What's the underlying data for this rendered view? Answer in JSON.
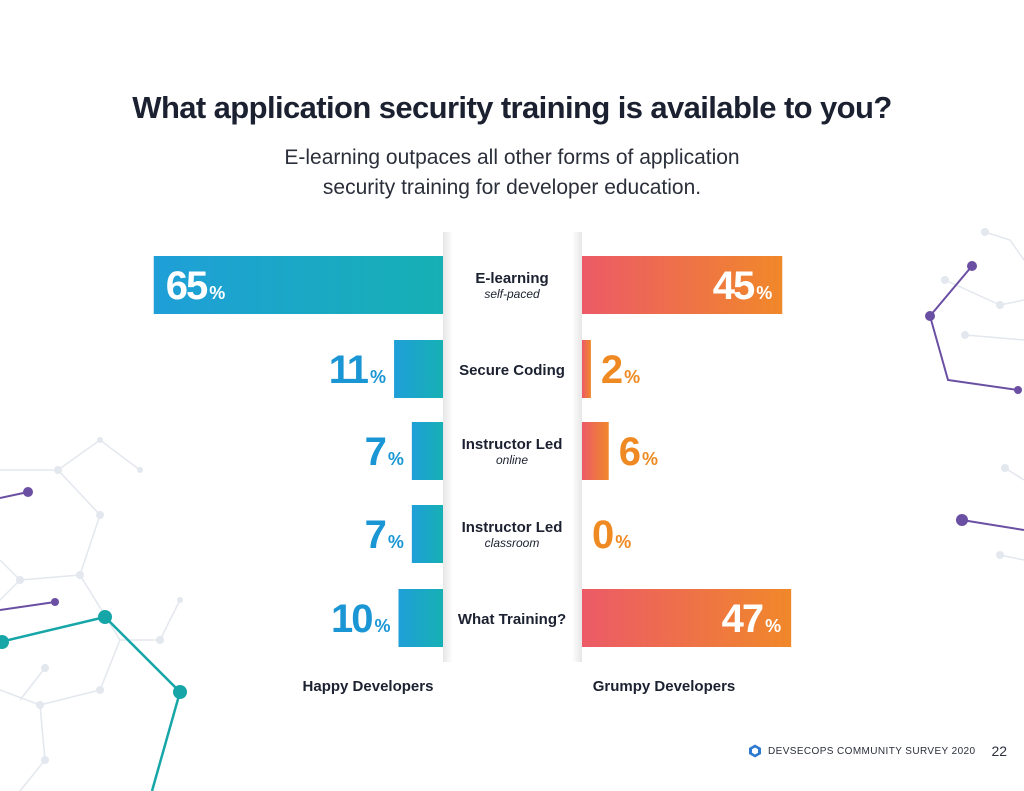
{
  "page": {
    "title": "What application security training is available to you?",
    "subtitle": "E-learning outpaces all other forms of application security training for developer education."
  },
  "chart_data": {
    "type": "bar",
    "orientation": "horizontal-diverging",
    "categories": [
      {
        "label": "E-learning",
        "sublabel": "self-paced"
      },
      {
        "label": "Secure Coding",
        "sublabel": ""
      },
      {
        "label": "Instructor Led",
        "sublabel": "online"
      },
      {
        "label": "Instructor Led",
        "sublabel": "classroom"
      },
      {
        "label": "What Training?",
        "sublabel": ""
      }
    ],
    "series": [
      {
        "name": "Happy Developers",
        "values": [
          65,
          11,
          7,
          7,
          10
        ],
        "color_start": "#1f9fd8",
        "color_end": "#16b0b4",
        "label_color": "#1a96d4"
      },
      {
        "name": "Grumpy Developers",
        "values": [
          45,
          2,
          6,
          0,
          47
        ],
        "color_start": "#ec5a67",
        "color_end": "#f0882a",
        "label_color": "#ef8a22"
      }
    ],
    "unit": "%",
    "xlim": [
      0,
      100
    ],
    "legend_position": "bottom"
  },
  "footer": {
    "text": "DEVSECOPS COMMUNITY SURVEY 2020",
    "page_number": "22",
    "logo_icon": "hexagon-logo-icon"
  }
}
